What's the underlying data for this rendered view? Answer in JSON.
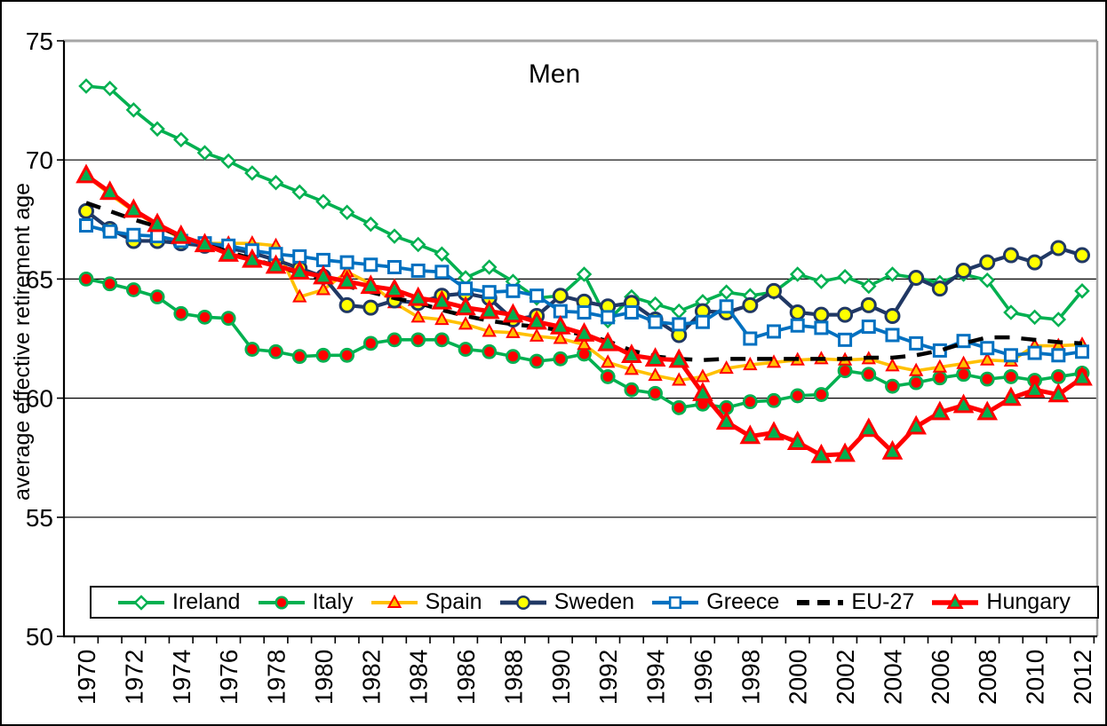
{
  "window": {
    "title": "Men"
  },
  "colors": {
    "background": "#FFFFFF",
    "axis": "#000000",
    "frame_top_right": "#A6A6A6",
    "gridline": "#000000"
  },
  "chart_data": {
    "type": "line",
    "title": "Men",
    "xlabel": "",
    "ylabel": "average effective retirement age",
    "ylim": [
      50,
      75
    ],
    "y_ticks": [
      50,
      55,
      60,
      65,
      70,
      75
    ],
    "grid": "horizontal",
    "legend_position": "bottom",
    "x": [
      1970,
      1971,
      1972,
      1973,
      1974,
      1975,
      1976,
      1977,
      1978,
      1979,
      1980,
      1981,
      1982,
      1983,
      1984,
      1985,
      1986,
      1987,
      1988,
      1989,
      1990,
      1991,
      1992,
      1993,
      1994,
      1995,
      1996,
      1997,
      1998,
      1999,
      2000,
      2001,
      2002,
      2003,
      2004,
      2005,
      2006,
      2007,
      2008,
      2009,
      2010,
      2011,
      2012
    ],
    "x_tick_labels": [
      "1970",
      "1972",
      "1974",
      "1976",
      "1978",
      "1980",
      "1982",
      "1984",
      "1986",
      "1988",
      "1990",
      "1992",
      "1994",
      "1996",
      "1998",
      "2000",
      "2002",
      "2004",
      "2006",
      "2008",
      "2010",
      "2012"
    ],
    "series": [
      {
        "name": "Ireland",
        "color": "#00B050",
        "line_width": 3.6,
        "marker": "diamond",
        "marker_fill": "#FFFFFF",
        "marker_stroke": "#00B050",
        "marker_size": 7,
        "marker_stroke_width": 2.5,
        "values": [
          73.1,
          73.0,
          72.1,
          71.3,
          70.85,
          70.3,
          69.95,
          69.45,
          69.05,
          68.65,
          68.25,
          67.8,
          67.3,
          66.8,
          66.45,
          66.05,
          65.05,
          65.5,
          64.9,
          64.2,
          64.3,
          65.2,
          63.25,
          64.25,
          63.95,
          63.65,
          64.05,
          64.45,
          64.3,
          64.45,
          65.2,
          64.9,
          65.1,
          64.7,
          65.2,
          65.05,
          64.85,
          65.2,
          64.95,
          63.6,
          63.4,
          63.3,
          64.5
        ]
      },
      {
        "name": "Italy",
        "color": "#00B050",
        "line_width": 3.6,
        "marker": "circle",
        "marker_fill": "#FF0000",
        "marker_stroke": "#00B050",
        "marker_size": 7,
        "marker_stroke_width": 2.8,
        "values": [
          65.0,
          64.8,
          64.55,
          64.25,
          63.55,
          63.4,
          63.35,
          62.05,
          61.95,
          61.75,
          61.8,
          61.8,
          62.3,
          62.45,
          62.45,
          62.45,
          62.05,
          61.95,
          61.75,
          61.55,
          61.65,
          61.85,
          60.9,
          60.35,
          60.2,
          59.6,
          59.75,
          59.6,
          59.85,
          59.9,
          60.1,
          60.15,
          61.15,
          61.0,
          60.5,
          60.65,
          60.85,
          61.0,
          60.8,
          60.9,
          60.75,
          60.9,
          61.05
        ]
      },
      {
        "name": "Spain",
        "color": "#FFC000",
        "line_width": 3.6,
        "marker": "triangle",
        "marker_fill": "#FFC000",
        "marker_stroke": "#FF0000",
        "marker_size": 7,
        "marker_stroke_width": 2,
        "values": [
          69.35,
          68.55,
          67.85,
          67.25,
          66.7,
          66.5,
          66.5,
          66.5,
          66.4,
          64.25,
          64.55,
          65.3,
          64.8,
          64.0,
          63.4,
          63.3,
          63.1,
          62.8,
          62.75,
          62.6,
          62.5,
          62.25,
          61.5,
          61.2,
          60.95,
          60.75,
          60.9,
          61.25,
          61.4,
          61.5,
          61.6,
          61.65,
          61.6,
          61.65,
          61.35,
          61.15,
          61.3,
          61.45,
          61.6,
          61.55,
          62.2,
          62.2,
          62.25
        ]
      },
      {
        "name": "Sweden",
        "color": "#203864",
        "line_width": 4.2,
        "marker": "circle",
        "marker_fill": "#FFFF00",
        "marker_stroke": "#203864",
        "marker_size": 7.5,
        "marker_stroke_width": 3,
        "values": [
          67.85,
          67.1,
          66.6,
          66.6,
          66.5,
          66.4,
          66.3,
          66.1,
          65.8,
          65.45,
          65.1,
          63.9,
          63.8,
          64.1,
          64.0,
          64.3,
          64.4,
          64.2,
          63.3,
          63.45,
          64.3,
          64.05,
          63.85,
          64.0,
          63.3,
          62.65,
          63.65,
          63.6,
          63.9,
          64.5,
          63.6,
          63.5,
          63.5,
          63.9,
          63.45,
          65.05,
          64.6,
          65.35,
          65.7,
          66.0,
          65.7,
          66.3,
          66.0
        ]
      },
      {
        "name": "Greece",
        "color": "#0070C0",
        "line_width": 3.8,
        "marker": "square",
        "marker_fill": "#FFFFFF",
        "marker_stroke": "#0070C0",
        "marker_size": 6.5,
        "marker_stroke_width": 3,
        "values": [
          67.25,
          67.0,
          66.85,
          66.8,
          66.6,
          66.5,
          66.4,
          66.2,
          66.05,
          65.95,
          65.8,
          65.7,
          65.6,
          65.5,
          65.35,
          65.3,
          64.6,
          64.45,
          64.5,
          64.3,
          63.65,
          63.6,
          63.4,
          63.6,
          63.2,
          63.1,
          63.2,
          63.85,
          62.5,
          62.8,
          63.05,
          62.95,
          62.45,
          63.0,
          62.65,
          62.3,
          62.0,
          62.4,
          62.1,
          61.8,
          61.9,
          61.8,
          61.95
        ]
      },
      {
        "name": "EU-27",
        "color": "#000000",
        "line_width": 4.5,
        "dash": [
          17,
          13
        ],
        "marker": "none",
        "values": [
          68.2,
          67.85,
          67.5,
          67.2,
          66.8,
          66.45,
          66.15,
          65.85,
          65.55,
          65.25,
          64.95,
          64.7,
          64.45,
          64.2,
          64.0,
          63.7,
          63.45,
          63.25,
          63.1,
          63.0,
          62.85,
          62.65,
          62.4,
          62.0,
          61.75,
          61.65,
          61.6,
          61.65,
          61.65,
          61.65,
          61.65,
          61.65,
          61.65,
          61.7,
          61.7,
          61.8,
          62.0,
          62.3,
          62.55,
          62.55,
          62.45,
          62.35,
          62.3
        ]
      },
      {
        "name": "Hungary",
        "color": "#FF0000",
        "line_width": 5,
        "marker": "triangle",
        "marker_fill": "#00B050",
        "marker_stroke": "#FF0000",
        "marker_size": 10,
        "marker_stroke_width": 3,
        "values": [
          69.35,
          68.65,
          67.9,
          67.3,
          66.8,
          66.45,
          66.05,
          65.8,
          65.55,
          65.3,
          65.1,
          64.9,
          64.7,
          64.55,
          64.2,
          64.05,
          63.8,
          63.65,
          63.5,
          63.2,
          63.0,
          62.7,
          62.3,
          61.8,
          61.65,
          61.6,
          60.2,
          59.0,
          58.4,
          58.55,
          58.15,
          57.6,
          57.65,
          58.7,
          57.75,
          58.8,
          59.4,
          59.7,
          59.4,
          60.0,
          60.35,
          60.15,
          60.85
        ]
      }
    ]
  }
}
